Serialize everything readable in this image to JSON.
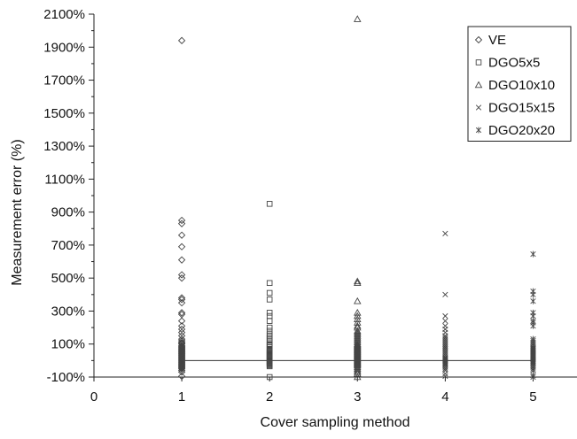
{
  "chart_data": {
    "type": "scatter",
    "xlabel": "Cover sampling method",
    "ylabel": "Measurement error (%)",
    "xlim": [
      0,
      5.5
    ],
    "ylim": [
      -100,
      2100
    ],
    "x_ticks": [
      0,
      1,
      2,
      3,
      4,
      5
    ],
    "y_ticks": [
      -100,
      100,
      300,
      500,
      700,
      900,
      1100,
      1300,
      1500,
      1700,
      1900,
      2100
    ],
    "y_tick_suffix": "%",
    "grid": false,
    "legend_position": "top-right",
    "reference_line": {
      "y": 0,
      "x_from": 1,
      "x_to": 5
    },
    "series": [
      {
        "name": "VE",
        "marker": "diamond",
        "x": 1,
        "values": [
          1940,
          850,
          830,
          760,
          690,
          610,
          520,
          500,
          380,
          370,
          350,
          290,
          280,
          240,
          210,
          190,
          170,
          150,
          130,
          120,
          110,
          105,
          100,
          90,
          85,
          80,
          75,
          70,
          65,
          60,
          55,
          50,
          45,
          40,
          35,
          30,
          25,
          20,
          15,
          10,
          5,
          0,
          -5,
          -10,
          -15,
          -20,
          -25,
          -30,
          -35,
          -40,
          -45,
          -50,
          -60,
          -70,
          -95
        ]
      },
      {
        "name": "DGO5x5",
        "marker": "square",
        "x": 2,
        "values": [
          950,
          470,
          410,
          370,
          290,
          270,
          240,
          200,
          180,
          160,
          150,
          140,
          130,
          120,
          110,
          100,
          95,
          90,
          80,
          70,
          65,
          60,
          55,
          50,
          45,
          40,
          35,
          30,
          25,
          20,
          15,
          10,
          5,
          0,
          -5,
          -10,
          -15,
          -20,
          -25,
          -30,
          -35,
          -100
        ]
      },
      {
        "name": "DGO10x10",
        "marker": "triangle",
        "x": 3,
        "values": [
          2070,
          480,
          470,
          360,
          290,
          270,
          250,
          230,
          210,
          200,
          180,
          170,
          160,
          150,
          140,
          130,
          120,
          110,
          100,
          95,
          90,
          85,
          80,
          75,
          70,
          65,
          60,
          55,
          50,
          45,
          40,
          35,
          30,
          25,
          20,
          15,
          10,
          5,
          0,
          -5,
          -10,
          -15,
          -20,
          -25,
          -30,
          -40,
          -50,
          -60,
          -70,
          -80,
          -100
        ]
      },
      {
        "name": "DGO15x15",
        "marker": "x",
        "x": 4,
        "values": [
          770,
          400,
          270,
          240,
          210,
          190,
          170,
          150,
          140,
          130,
          120,
          110,
          100,
          90,
          80,
          70,
          60,
          50,
          40,
          30,
          20,
          15,
          10,
          5,
          0,
          -5,
          -10,
          -15,
          -20,
          -25,
          -30,
          -40,
          -50,
          -60,
          -80,
          -95
        ]
      },
      {
        "name": "DGO20x20",
        "marker": "asterisk",
        "x": 5,
        "values": [
          645,
          420,
          400,
          360,
          290,
          270,
          240,
          230,
          210,
          130,
          120,
          110,
          100,
          90,
          80,
          75,
          70,
          65,
          60,
          55,
          50,
          45,
          40,
          35,
          30,
          25,
          20,
          15,
          10,
          5,
          0,
          -5,
          -10,
          -15,
          -20,
          -30,
          -40,
          -50,
          -60,
          -90,
          -100
        ]
      }
    ]
  }
}
